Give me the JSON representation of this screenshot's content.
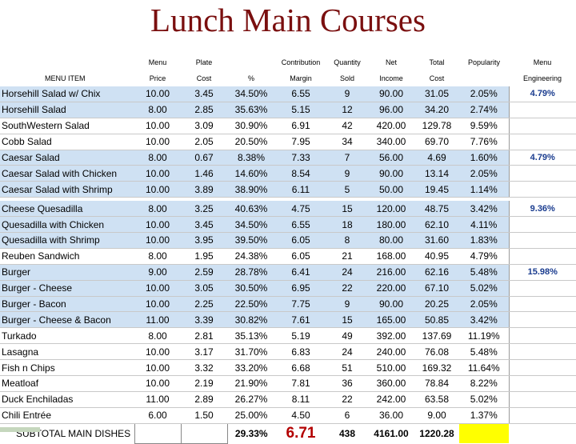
{
  "title": "Lunch Main Courses",
  "headers": {
    "row1": [
      "",
      "Menu",
      "Plate",
      "",
      "Contribution",
      "Quantity",
      "Net",
      "Total",
      "Popularity",
      "Menu"
    ],
    "row2": [
      "MENU ITEM",
      "Price",
      "Cost",
      "%",
      "Margin",
      "Sold",
      "Income",
      "Cost",
      "",
      "Engineering"
    ]
  },
  "rows": [
    {
      "item": "Horsehill Salad w/ Chix",
      "price": "10.00",
      "cost": "3.45",
      "pct": "34.50%",
      "margin": "6.55",
      "qty": "9",
      "income": "90.00",
      "total": "31.05",
      "pop": "2.05%",
      "eng": "4.79%",
      "band": true
    },
    {
      "item": "Horsehill Salad",
      "price": "8.00",
      "cost": "2.85",
      "pct": "35.63%",
      "margin": "5.15",
      "qty": "12",
      "income": "96.00",
      "total": "34.20",
      "pop": "2.74%",
      "eng": "",
      "band": true
    },
    {
      "item": "SouthWestern Salad",
      "price": "10.00",
      "cost": "3.09",
      "pct": "30.90%",
      "margin": "6.91",
      "qty": "42",
      "income": "420.00",
      "total": "129.78",
      "pop": "9.59%",
      "eng": "",
      "band": false
    },
    {
      "item": "Cobb Salad",
      "price": "10.00",
      "cost": "2.05",
      "pct": "20.50%",
      "margin": "7.95",
      "qty": "34",
      "income": "340.00",
      "total": "69.70",
      "pop": "7.76%",
      "eng": "",
      "band": false
    },
    {
      "item": "Caesar Salad",
      "price": "8.00",
      "cost": "0.67",
      "pct": "8.38%",
      "margin": "7.33",
      "qty": "7",
      "income": "56.00",
      "total": "4.69",
      "pop": "1.60%",
      "eng": "4.79%",
      "band": true
    },
    {
      "item": "Caesar Salad with Chicken",
      "price": "10.00",
      "cost": "1.46",
      "pct": "14.60%",
      "margin": "8.54",
      "qty": "9",
      "income": "90.00",
      "total": "13.14",
      "pop": "2.05%",
      "eng": "",
      "band": true
    },
    {
      "item": "Caesar Salad with Shrimp",
      "price": "10.00",
      "cost": "3.89",
      "pct": "38.90%",
      "margin": "6.11",
      "qty": "5",
      "income": "50.00",
      "total": "19.45",
      "pop": "1.14%",
      "eng": "",
      "band": true
    },
    {
      "item": "Cheese Quesadilla",
      "price": "8.00",
      "cost": "3.25",
      "pct": "40.63%",
      "margin": "4.75",
      "qty": "15",
      "income": "120.00",
      "total": "48.75",
      "pop": "3.42%",
      "eng": "9.36%",
      "band": true
    },
    {
      "item": "Quesadilla with Chicken",
      "price": "10.00",
      "cost": "3.45",
      "pct": "34.50%",
      "margin": "6.55",
      "qty": "18",
      "income": "180.00",
      "total": "62.10",
      "pop": "4.11%",
      "eng": "",
      "band": true
    },
    {
      "item": "Quesadilla with Shrimp",
      "price": "10.00",
      "cost": "3.95",
      "pct": "39.50%",
      "margin": "6.05",
      "qty": "8",
      "income": "80.00",
      "total": "31.60",
      "pop": "1.83%",
      "eng": "",
      "band": true
    },
    {
      "item": "Reuben Sandwich",
      "price": "8.00",
      "cost": "1.95",
      "pct": "24.38%",
      "margin": "6.05",
      "qty": "21",
      "income": "168.00",
      "total": "40.95",
      "pop": "4.79%",
      "eng": "",
      "band": false
    },
    {
      "item": "Burger",
      "price": "9.00",
      "cost": "2.59",
      "pct": "28.78%",
      "margin": "6.41",
      "qty": "24",
      "income": "216.00",
      "total": "62.16",
      "pop": "5.48%",
      "eng": "15.98%",
      "band": true
    },
    {
      "item": "Burger - Cheese",
      "price": "10.00",
      "cost": "3.05",
      "pct": "30.50%",
      "margin": "6.95",
      "qty": "22",
      "income": "220.00",
      "total": "67.10",
      "pop": "5.02%",
      "eng": "",
      "band": true
    },
    {
      "item": "Burger - Bacon",
      "price": "10.00",
      "cost": "2.25",
      "pct": "22.50%",
      "margin": "7.75",
      "qty": "9",
      "income": "90.00",
      "total": "20.25",
      "pop": "2.05%",
      "eng": "",
      "band": true
    },
    {
      "item": "Burger - Cheese & Bacon",
      "price": "11.00",
      "cost": "3.39",
      "pct": "30.82%",
      "margin": "7.61",
      "qty": "15",
      "income": "165.00",
      "total": "50.85",
      "pop": "3.42%",
      "eng": "",
      "band": true
    },
    {
      "item": "Turkado",
      "price": "8.00",
      "cost": "2.81",
      "pct": "35.13%",
      "margin": "5.19",
      "qty": "49",
      "income": "392.00",
      "total": "137.69",
      "pop": "11.19%",
      "eng": "",
      "band": false
    },
    {
      "item": "Lasagna",
      "price": "10.00",
      "cost": "3.17",
      "pct": "31.70%",
      "margin": "6.83",
      "qty": "24",
      "income": "240.00",
      "total": "76.08",
      "pop": "5.48%",
      "eng": "",
      "band": false
    },
    {
      "item": "Fish n Chips",
      "price": "10.00",
      "cost": "3.32",
      "pct": "33.20%",
      "margin": "6.68",
      "qty": "51",
      "income": "510.00",
      "total": "169.32",
      "pop": "11.64%",
      "eng": "",
      "band": false
    },
    {
      "item": "Meatloaf",
      "price": "10.00",
      "cost": "2.19",
      "pct": "21.90%",
      "margin": "7.81",
      "qty": "36",
      "income": "360.00",
      "total": "78.84",
      "pop": "8.22%",
      "eng": "",
      "band": false
    },
    {
      "item": "Duck Enchiladas",
      "price": "11.00",
      "cost": "2.89",
      "pct": "26.27%",
      "margin": "8.11",
      "qty": "22",
      "income": "242.00",
      "total": "63.58",
      "pop": "5.02%",
      "eng": "",
      "band": false
    },
    {
      "item": "Chili Entrée",
      "price": "6.00",
      "cost": "1.50",
      "pct": "25.00%",
      "margin": "4.50",
      "qty": "6",
      "income": "36.00",
      "total": "9.00",
      "pop": "1.37%",
      "eng": "",
      "band": false
    }
  ],
  "subtotal": {
    "label": "SUBTOTAL MAIN DISHES",
    "pct": "29.33%",
    "margin": "6.71",
    "qty": "438",
    "income": "4161.00",
    "total": "1220.28"
  },
  "colors": {
    "title": "#7a0f0f",
    "band": "#cfe1f3",
    "engineering_text": "#1a3c8f",
    "subtotal_margin": "#b30000",
    "highlight": "#ffff00"
  }
}
